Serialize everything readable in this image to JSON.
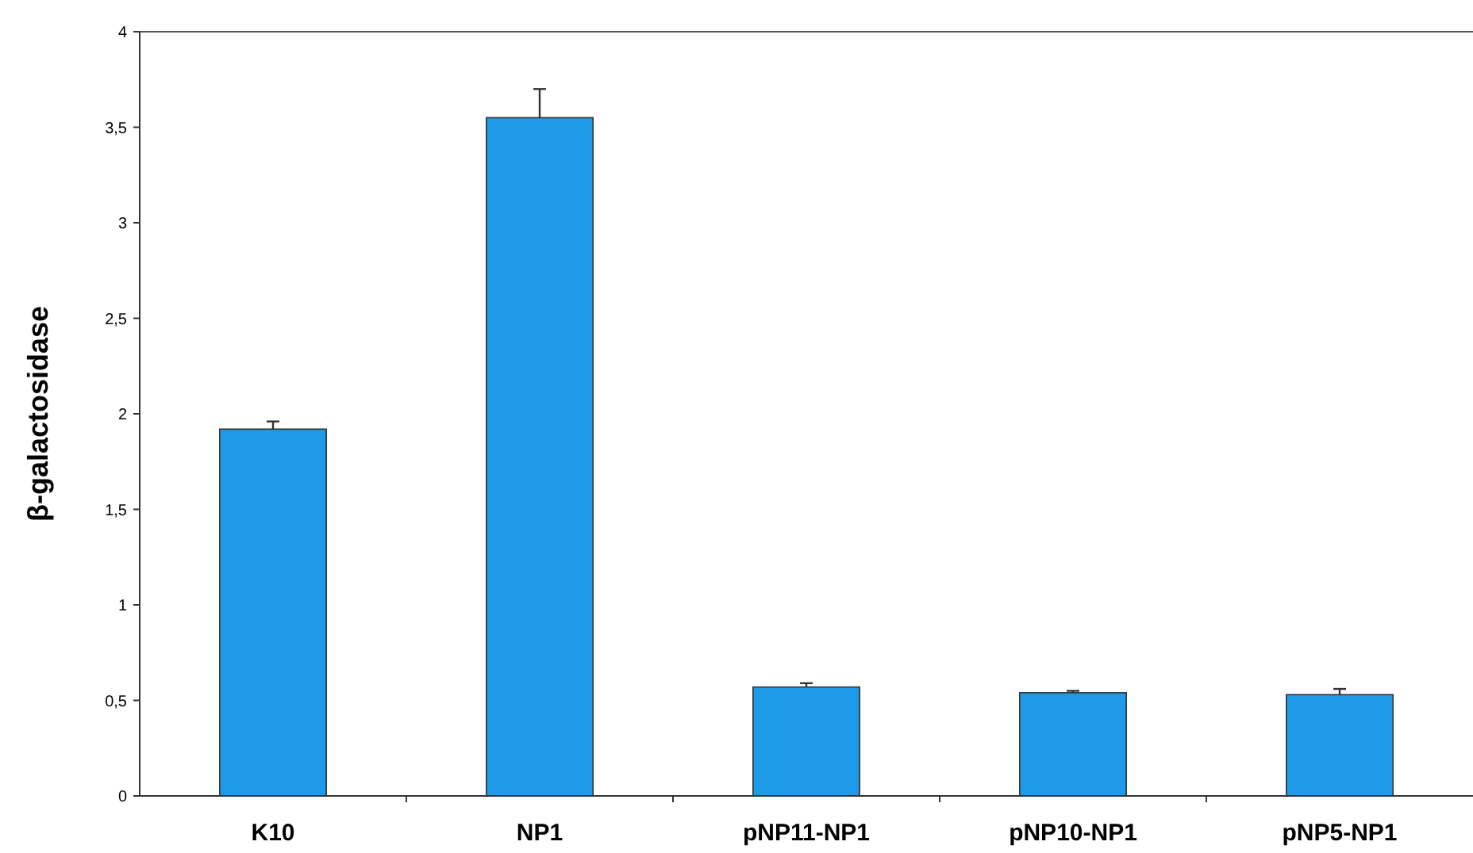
{
  "chart_data": {
    "type": "bar",
    "ylabel": "β-galactosidase",
    "categories": [
      "K10",
      "NP1",
      "pNP11-NP1",
      "pNP10-NP1",
      "pNP5-NP1"
    ],
    "values": [
      1.92,
      3.55,
      0.57,
      0.54,
      0.53
    ],
    "errors": [
      [
        1.92,
        1.96
      ],
      [
        3.55,
        3.7
      ],
      [
        0.57,
        0.59
      ],
      [
        0.54,
        0.55
      ],
      [
        0.53,
        0.56
      ]
    ],
    "color": "#1e9be8",
    "ylim": [
      0,
      4
    ],
    "yticks": [
      0,
      {
        "value": 0.5,
        "label": "0,5"
      },
      1,
      {
        "value": 1.5,
        "label": "1,5"
      },
      2,
      {
        "value": 2.5,
        "label": "2,5"
      },
      3,
      {
        "value": 3.5,
        "label": "3,5"
      },
      4
    ],
    "grid": false
  }
}
